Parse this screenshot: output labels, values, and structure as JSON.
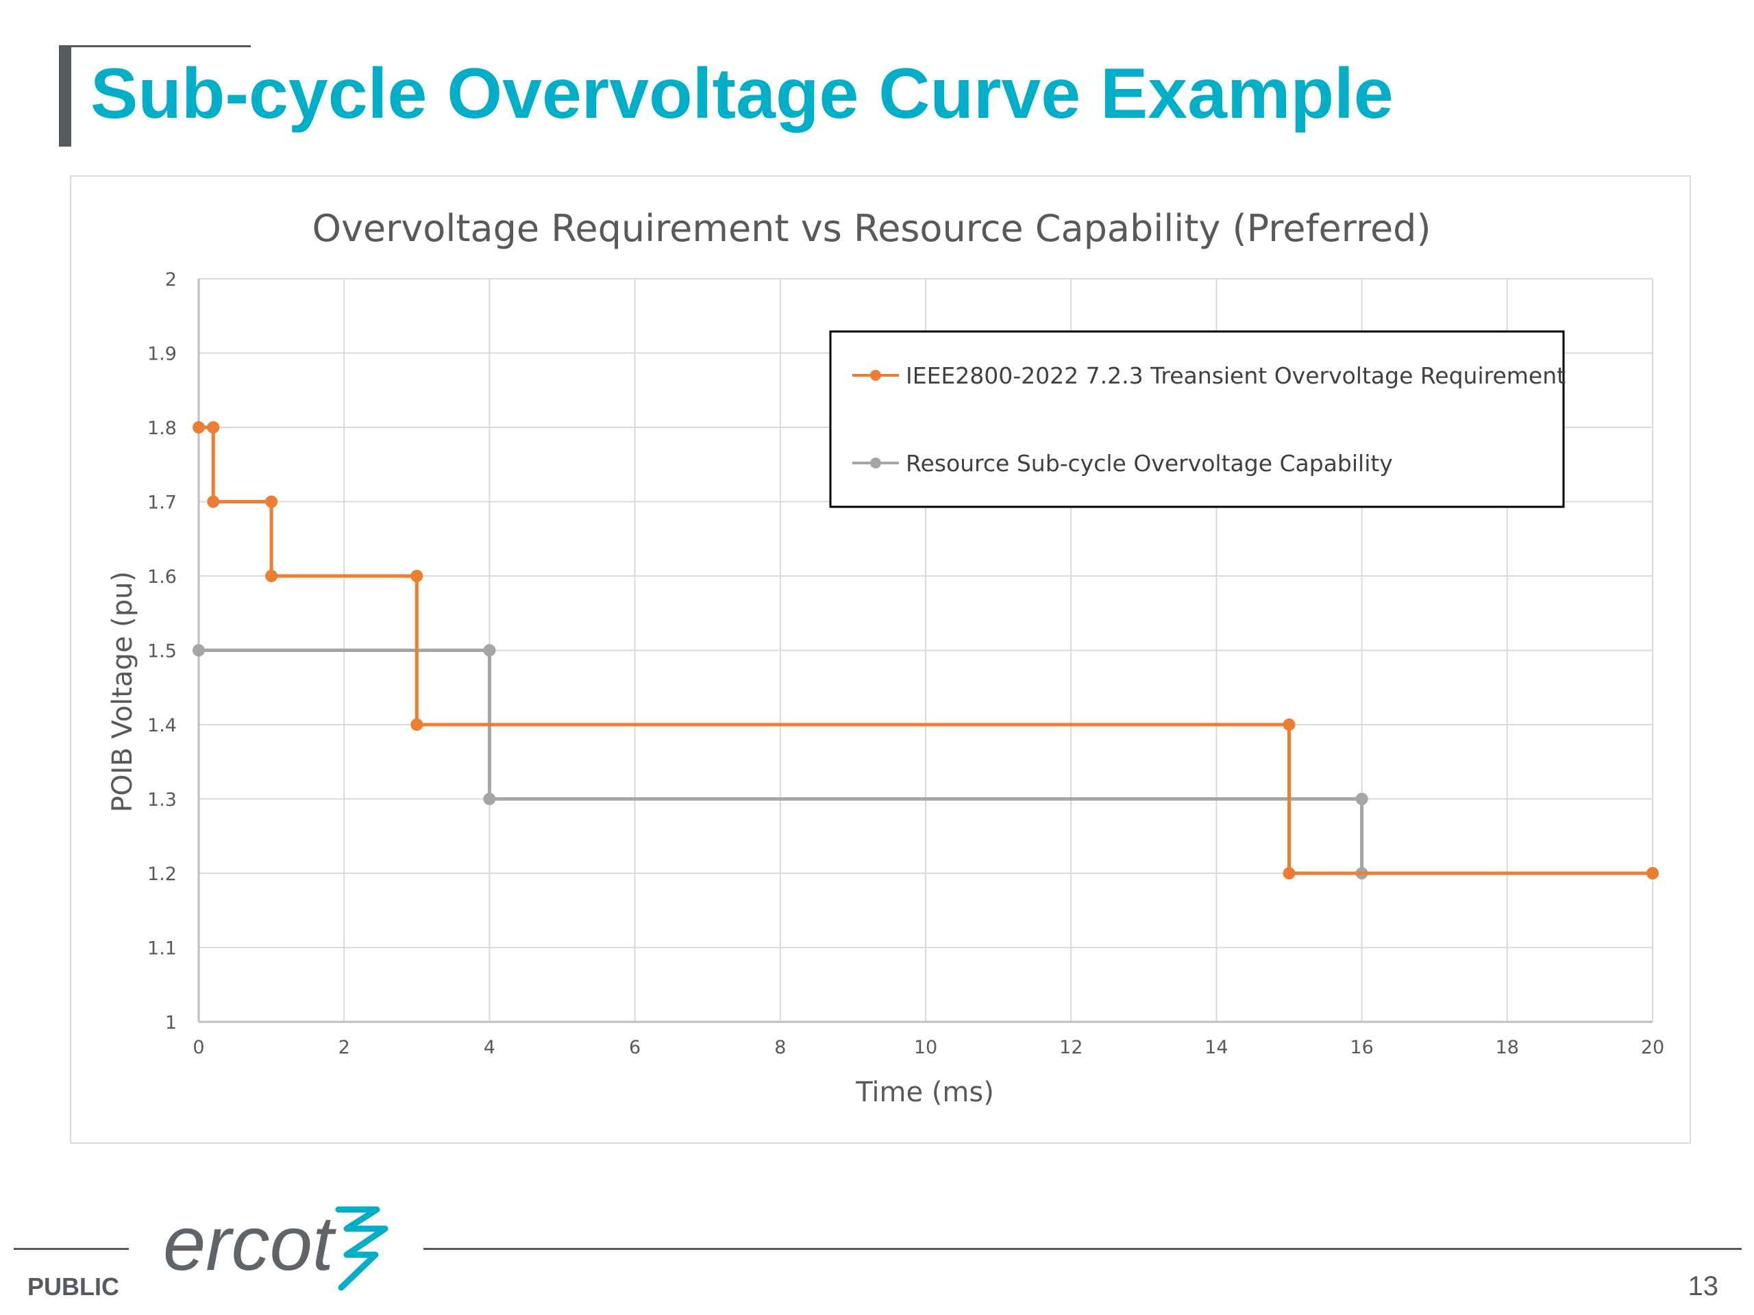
{
  "slide": {
    "title": "Sub-cycle Overvoltage Curve Example",
    "footer_label": "PUBLIC",
    "page_number": "13",
    "logo_text": "ercot"
  },
  "colors": {
    "title": "#00aec7",
    "orange": "#ed7d31",
    "gray": "#a5a5a5",
    "dark": "#555a5f"
  },
  "chart_data": {
    "type": "line",
    "title": "Overvoltage Requirement vs Resource Capability (Preferred)",
    "xlabel": "Time (ms)",
    "ylabel": "POIB Voltage (pu)",
    "xlim": [
      0,
      20
    ],
    "ylim": [
      1,
      2
    ],
    "xticks": [
      0,
      2,
      4,
      6,
      8,
      10,
      12,
      14,
      16,
      18,
      20
    ],
    "yticks": [
      1,
      1.1,
      1.2,
      1.3,
      1.4,
      1.5,
      1.6,
      1.7,
      1.8,
      1.9,
      2
    ],
    "grid": true,
    "legend_position": "top-right",
    "series": [
      {
        "name": "IEEE2800-2022 7.2.3 Treansient Overvoltage Requirement",
        "color": "#ed7d31",
        "x": [
          0,
          0.2,
          0.2,
          1,
          1,
          3,
          3,
          15,
          15,
          20
        ],
        "y": [
          1.8,
          1.8,
          1.7,
          1.7,
          1.6,
          1.6,
          1.4,
          1.4,
          1.2,
          1.2
        ]
      },
      {
        "name": "Resource Sub-cycle Overvoltage Capability",
        "color": "#a5a5a5",
        "x": [
          0,
          4,
          4,
          16,
          16,
          20
        ],
        "y": [
          1.5,
          1.5,
          1.3,
          1.3,
          1.2,
          1.2
        ]
      }
    ]
  }
}
